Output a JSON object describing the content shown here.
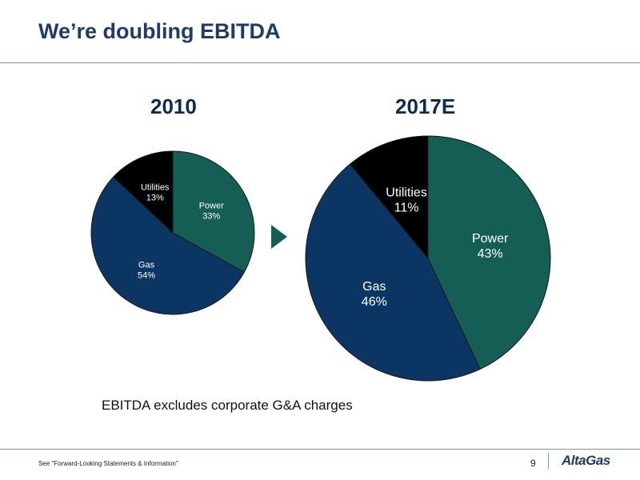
{
  "slide": {
    "title": "We’re doubling EBITDA",
    "note": "EBITDA excludes corporate G&A charges",
    "footer_text": "See \"Forward-Looking Statements & Information\"",
    "page_number": "9",
    "logo_text": "AltaGas"
  },
  "colors": {
    "power": "#155e56",
    "gas": "#0b3664",
    "utilities": "#000000",
    "title": "#1f3b6b",
    "arrow": "#155e56"
  },
  "icons": {
    "transition_arrow": "triangle-right-icon"
  },
  "chart_data": [
    {
      "type": "pie",
      "title": "2010",
      "slices": [
        {
          "label": "Power",
          "value": 33,
          "value_label": "33%",
          "color": "#155e56"
        },
        {
          "label": "Gas",
          "value": 54,
          "value_label": "54%",
          "color": "#0b3664"
        },
        {
          "label": "Utilities",
          "value": 13,
          "value_label": "13%",
          "color": "#000000"
        }
      ]
    },
    {
      "type": "pie",
      "title": "2017E",
      "slices": [
        {
          "label": "Power",
          "value": 43,
          "value_label": "43%",
          "color": "#155e56"
        },
        {
          "label": "Gas",
          "value": 46,
          "value_label": "46%",
          "color": "#0b3664"
        },
        {
          "label": "Utilities",
          "value": 11,
          "value_label": "11%",
          "color": "#000000"
        }
      ]
    }
  ]
}
